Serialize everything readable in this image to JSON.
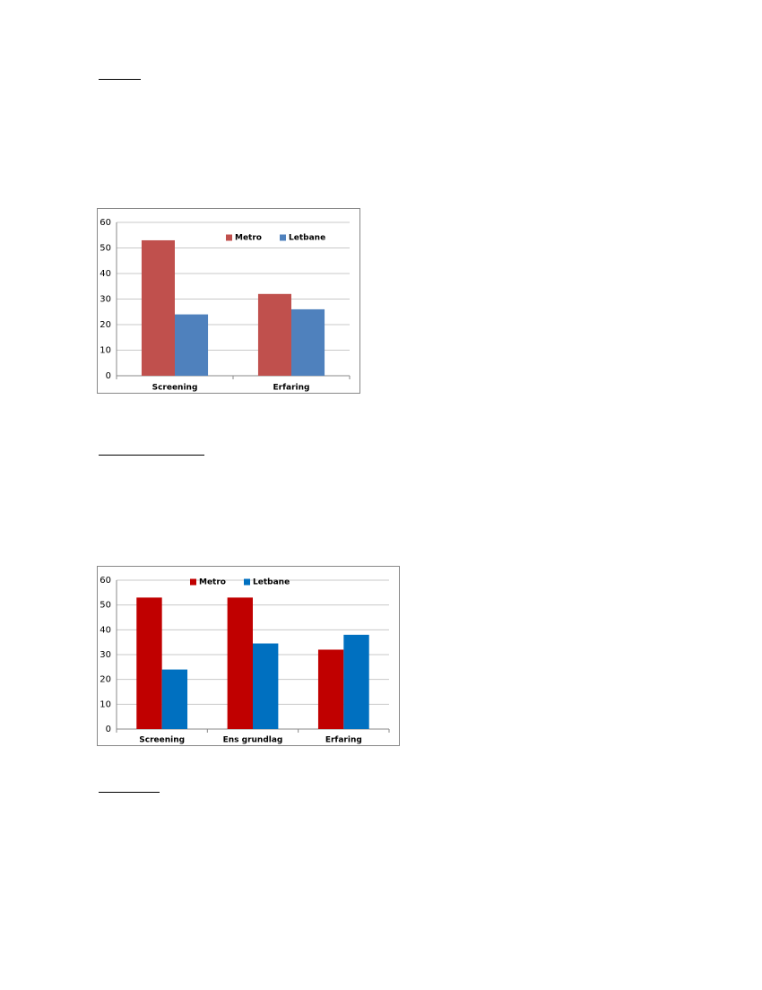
{
  "chart_data": [
    {
      "type": "bar",
      "categories": [
        "Screening",
        "Erfaring"
      ],
      "series": [
        {
          "name": "Metro",
          "color": "#c0504d",
          "values": [
            53,
            32
          ]
        },
        {
          "name": "Letbane",
          "color": "#4f81bd",
          "values": [
            24,
            26
          ]
        }
      ],
      "ylim": [
        0,
        60
      ],
      "yticks": [
        0,
        10,
        20,
        30,
        40,
        50,
        60
      ],
      "grid": true,
      "legend": "upper right"
    },
    {
      "type": "bar",
      "categories": [
        "Screening",
        "Ens grundlag",
        "Erfaring"
      ],
      "series": [
        {
          "name": "Metro",
          "color": "#c00000",
          "values": [
            53,
            53,
            32
          ]
        },
        {
          "name": "Letbane",
          "color": "#0070c0",
          "values": [
            24,
            34.5,
            38
          ]
        }
      ],
      "ylim": [
        0,
        60
      ],
      "yticks": [
        0,
        10,
        20,
        30,
        40,
        50,
        60
      ],
      "grid": true,
      "legend": "upper center"
    }
  ]
}
